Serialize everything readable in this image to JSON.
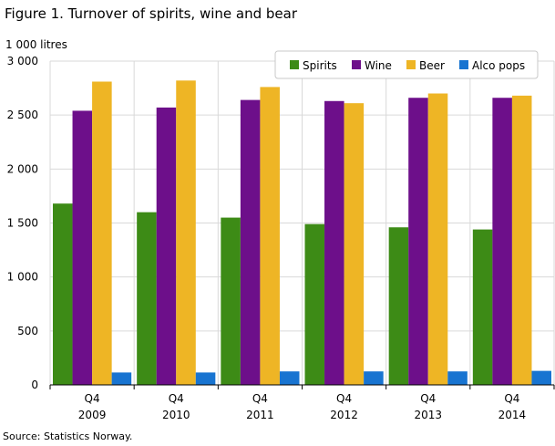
{
  "title": "Figure 1. Turnover of spirits, wine and bear",
  "source": "Source: Statistics Norway.",
  "chart_data": {
    "type": "bar",
    "title": "Figure 1. Turnover of spirits, wine and bear",
    "ylabel": "1 000 litres",
    "xlabel": "",
    "ylim": [
      0,
      3000
    ],
    "yticks": [
      0,
      500,
      1000,
      1500,
      2000,
      2500,
      3000
    ],
    "ytick_labels": [
      "0",
      "500",
      "1 000",
      "1 500",
      "2 000",
      "2 500",
      "3 000"
    ],
    "categories": [
      {
        "quarter": "Q4",
        "year": "2009"
      },
      {
        "quarter": "Q4",
        "year": "2010"
      },
      {
        "quarter": "Q4",
        "year": "2011"
      },
      {
        "quarter": "Q4",
        "year": "2012"
      },
      {
        "quarter": "Q4",
        "year": "2013"
      },
      {
        "quarter": "Q4",
        "year": "2014"
      }
    ],
    "series": [
      {
        "name": "Spirits",
        "color": "#3d8b16",
        "values": [
          1680,
          1600,
          1550,
          1490,
          1460,
          1440
        ]
      },
      {
        "name": "Wine",
        "color": "#6d0f8a",
        "values": [
          2540,
          2570,
          2640,
          2630,
          2660,
          2660
        ]
      },
      {
        "name": "Beer",
        "color": "#eeb525",
        "values": [
          2810,
          2820,
          2760,
          2610,
          2700,
          2680
        ]
      },
      {
        "name": "Alco pops",
        "color": "#1874d1",
        "values": [
          115,
          115,
          125,
          125,
          125,
          130
        ]
      }
    ],
    "grid": true,
    "legend_position": "top-right"
  }
}
